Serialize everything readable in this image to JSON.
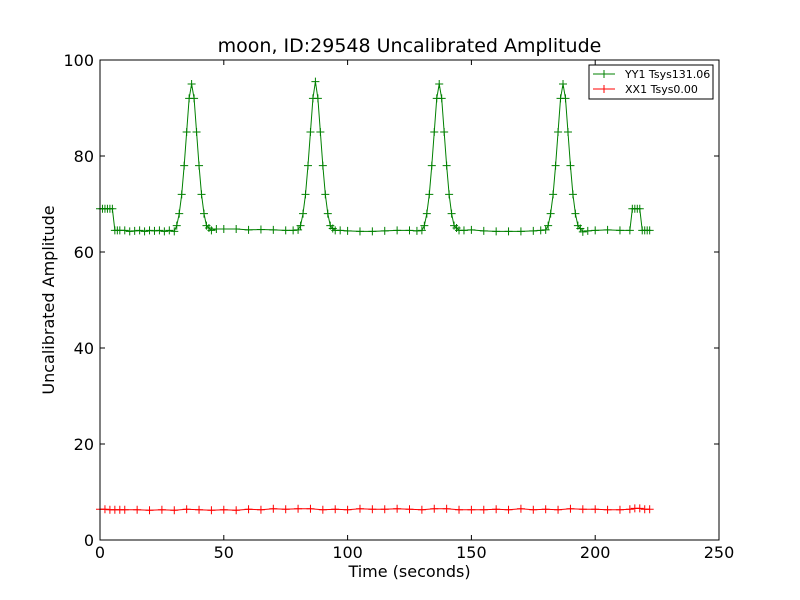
{
  "chart_data": {
    "type": "line",
    "title": "moon, ID:29548 Uncalibrated Amplitude",
    "xlabel": "Time (seconds)",
    "ylabel": "Uncalibrated Amplitude",
    "xlim": [
      0,
      250
    ],
    "ylim": [
      0,
      100
    ],
    "xticks": [
      0,
      50,
      100,
      150,
      200,
      250
    ],
    "yticks": [
      0,
      20,
      40,
      60,
      80,
      100
    ],
    "grid": false,
    "legend_position": "top-right",
    "marker": "plus",
    "series": [
      {
        "name": "YY1 Tsys131.06",
        "color": "#008000",
        "x": [
          0,
          1,
          2,
          3,
          4,
          5,
          6,
          7,
          8,
          10,
          12,
          14,
          16,
          18,
          20,
          22,
          24,
          26,
          28,
          30,
          31,
          32,
          33,
          34,
          35,
          36,
          37,
          38,
          39,
          40,
          41,
          42,
          43,
          44,
          45,
          47,
          50,
          55,
          60,
          65,
          70,
          75,
          78,
          80,
          81,
          82,
          83,
          84,
          85,
          86,
          87,
          88,
          89,
          90,
          91,
          92,
          93,
          94,
          95,
          97,
          100,
          105,
          110,
          115,
          120,
          125,
          128,
          130,
          131,
          132,
          133,
          134,
          135,
          136,
          137,
          138,
          139,
          140,
          141,
          142,
          143,
          144,
          145,
          147,
          150,
          155,
          160,
          165,
          170,
          175,
          178,
          180,
          181,
          182,
          183,
          184,
          185,
          186,
          187,
          188,
          189,
          190,
          191,
          192,
          193,
          194,
          195,
          197,
          200,
          205,
          210,
          214,
          215,
          216,
          217,
          218,
          219,
          220,
          221,
          222
        ],
        "y": [
          69,
          69,
          69,
          69,
          69,
          69,
          64.5,
          64.5,
          64.5,
          64.5,
          64.3,
          64.4,
          64.5,
          64.3,
          64.5,
          64.4,
          64.5,
          64.3,
          64.5,
          64.3,
          65.5,
          68,
          72,
          78,
          85,
          92,
          95,
          92,
          85,
          78,
          72,
          68,
          65.5,
          65,
          64.5,
          64.8,
          64.8,
          64.8,
          64.6,
          64.7,
          64.6,
          64.5,
          64.5,
          64.6,
          65.5,
          68,
          72,
          78,
          85,
          92,
          95.5,
          92,
          85,
          78,
          72,
          68,
          65.5,
          64.9,
          64.5,
          64.5,
          64.4,
          64.3,
          64.3,
          64.4,
          64.5,
          64.5,
          64.4,
          64.5,
          65.5,
          68,
          72,
          78,
          85,
          92,
          95,
          92,
          85,
          78,
          72,
          68,
          65.5,
          65,
          64.5,
          64.5,
          64.6,
          64.4,
          64.3,
          64.3,
          64.3,
          64.4,
          64.5,
          64.6,
          65.5,
          68,
          72,
          78,
          85,
          92,
          95,
          92,
          85,
          78,
          72,
          68,
          65.5,
          64.9,
          64.2,
          64.4,
          64.5,
          64.6,
          64.5,
          64.5,
          69,
          69,
          69,
          69,
          64.5,
          64.5,
          64.5,
          64.5
        ]
      },
      {
        "name": "XX1 Tsys0.00",
        "color": "#ff0000",
        "x": [
          0,
          2,
          4,
          6,
          8,
          10,
          15,
          20,
          25,
          30,
          35,
          40,
          45,
          50,
          55,
          60,
          65,
          70,
          75,
          80,
          85,
          90,
          95,
          100,
          105,
          110,
          115,
          120,
          125,
          130,
          135,
          140,
          145,
          150,
          155,
          160,
          165,
          170,
          175,
          180,
          185,
          190,
          195,
          200,
          205,
          210,
          214,
          216,
          218,
          220,
          222
        ],
        "y": [
          6.4,
          6.4,
          6.3,
          6.3,
          6.3,
          6.3,
          6.3,
          6.2,
          6.3,
          6.2,
          6.4,
          6.3,
          6.2,
          6.3,
          6.2,
          6.4,
          6.3,
          6.5,
          6.4,
          6.5,
          6.5,
          6.3,
          6.4,
          6.3,
          6.5,
          6.4,
          6.4,
          6.5,
          6.4,
          6.3,
          6.5,
          6.5,
          6.3,
          6.3,
          6.3,
          6.4,
          6.3,
          6.5,
          6.3,
          6.4,
          6.3,
          6.5,
          6.4,
          6.4,
          6.3,
          6.3,
          6.4,
          6.6,
          6.6,
          6.4,
          6.4
        ]
      }
    ]
  }
}
